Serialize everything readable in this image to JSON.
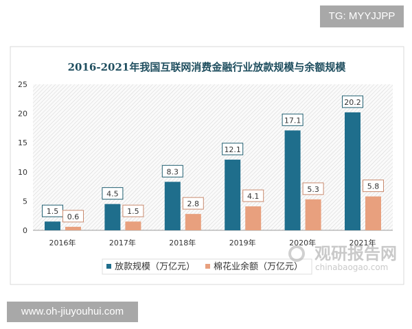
{
  "badges": {
    "top_right": "TG: MYYJJPP",
    "bottom_left": "www.oh-jiuyouhui.com"
  },
  "watermark": {
    "cn": "观研报告网",
    "en": "chinabaogao.com"
  },
  "chart_data": {
    "type": "bar",
    "title": "2016-2021年我国互联网消费金融行业放款规模与余额规模",
    "categories": [
      "2016年",
      "2017年",
      "2018年",
      "2019年",
      "2020年",
      "2021年"
    ],
    "series": [
      {
        "name": "放款规模（万亿元）",
        "color": "#1f6e8c",
        "values": [
          1.5,
          4.5,
          8.3,
          12.1,
          17.1,
          20.2
        ]
      },
      {
        "name": "棉花业余额（万亿元）",
        "color": "#e8a07e",
        "values": [
          0.6,
          1.5,
          2.8,
          4.1,
          5.3,
          5.8
        ]
      }
    ],
    "ylim": [
      0,
      25
    ],
    "yticks": [
      "0",
      "5",
      "10",
      "15",
      "20",
      "25"
    ],
    "legend": "bottom",
    "grid": false,
    "background": "hatched"
  }
}
